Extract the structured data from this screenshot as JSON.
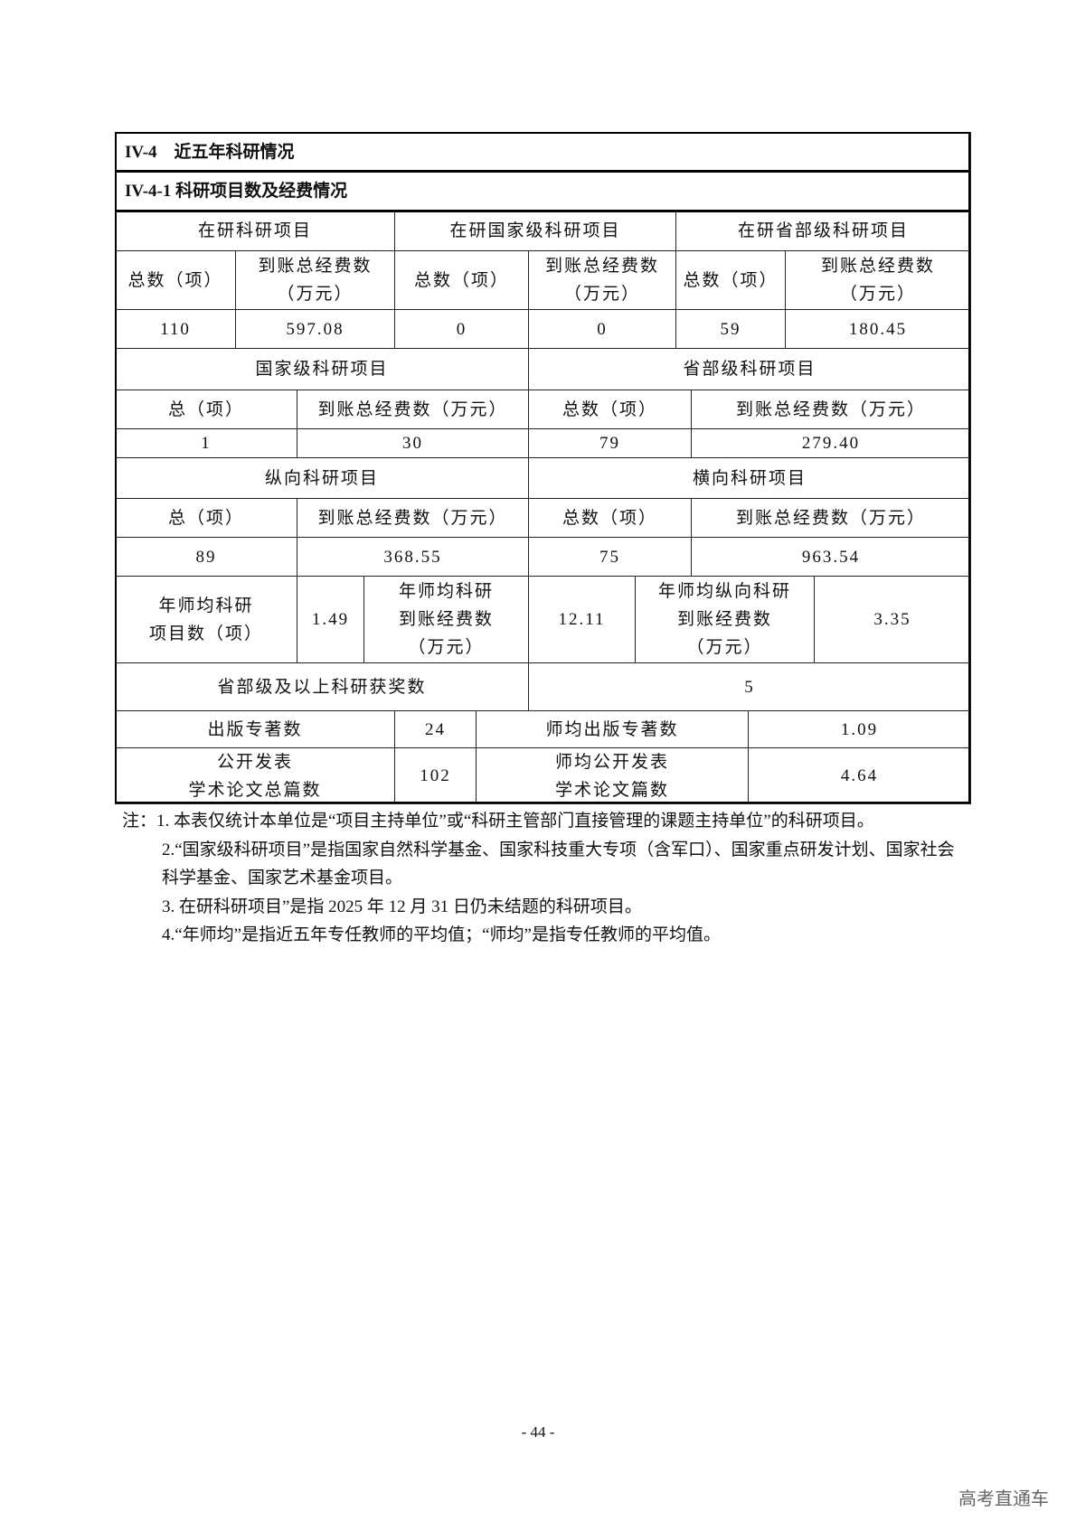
{
  "table": {
    "title": "IV-4　近五年科研情况",
    "subtitle": "IV-4-1 科研项目数及经费情况",
    "headers": {
      "in_progress": "在研科研项目",
      "in_progress_national": "在研国家级科研项目",
      "in_progress_provincial": "在研省部级科研项目",
      "total_count": "总数（项）",
      "funds": "到账总经费数\n（万元）",
      "national": "国家级科研项目",
      "provincial": "省部级科研项目",
      "total_short": "总（项）",
      "funds_inline": "到账总经费数（万元）",
      "total_count2": "总数（项）",
      "vertical": "纵向科研项目",
      "horizontal": "横向科研项目",
      "annual_avg_projects": "年师均科研\n项目数（项）",
      "annual_avg_funds": "年师均科研\n到账经费数\n（万元）",
      "annual_avg_vertical_funds": "年师均纵向科研\n到账经费数\n（万元）",
      "awards": "省部级及以上科研获奖数",
      "monographs": "出版专著数",
      "avg_monographs": "师均出版专著数",
      "papers": "公开发表\n学术论文总篇数",
      "avg_papers": "师均公开发表\n学术论文篇数"
    },
    "values": {
      "in_progress_count": "110",
      "in_progress_funds": "597.08",
      "national_count": "0",
      "national_funds": "0",
      "provincial_count": "59",
      "provincial_funds": "180.45",
      "nat_total": "1",
      "nat_funds": "30",
      "prov_total": "79",
      "prov_funds": "279.40",
      "vert_total": "89",
      "vert_funds": "368.55",
      "horiz_total": "75",
      "horiz_funds": "963.54",
      "annual_avg_projects": "1.49",
      "annual_avg_funds": "12.11",
      "annual_avg_vertical_funds": "3.35",
      "awards": "5",
      "monographs": "24",
      "avg_monographs": "1.09",
      "papers": "102",
      "avg_papers": "4.64"
    }
  },
  "notes": [
    "注：1. 本表仅统计本单位是“项目主持单位”或“科研主管部门直接管理的课题主持单位”的科研项目。",
    "2.“国家级科研项目”是指国家自然科学基金、国家科技重大专项（含军口）、国家重点研发计划、国家社会科学基金、国家艺术基金项目。",
    "3. 在研科研项目”是指 2025 年 12 月 31 日仍未结题的科研项目。",
    "4.“年师均”是指近五年专任教师的平均值；“师均”是指专任教师的平均值。"
  ],
  "page_number": "- 44 -",
  "watermark": "高考直通车"
}
